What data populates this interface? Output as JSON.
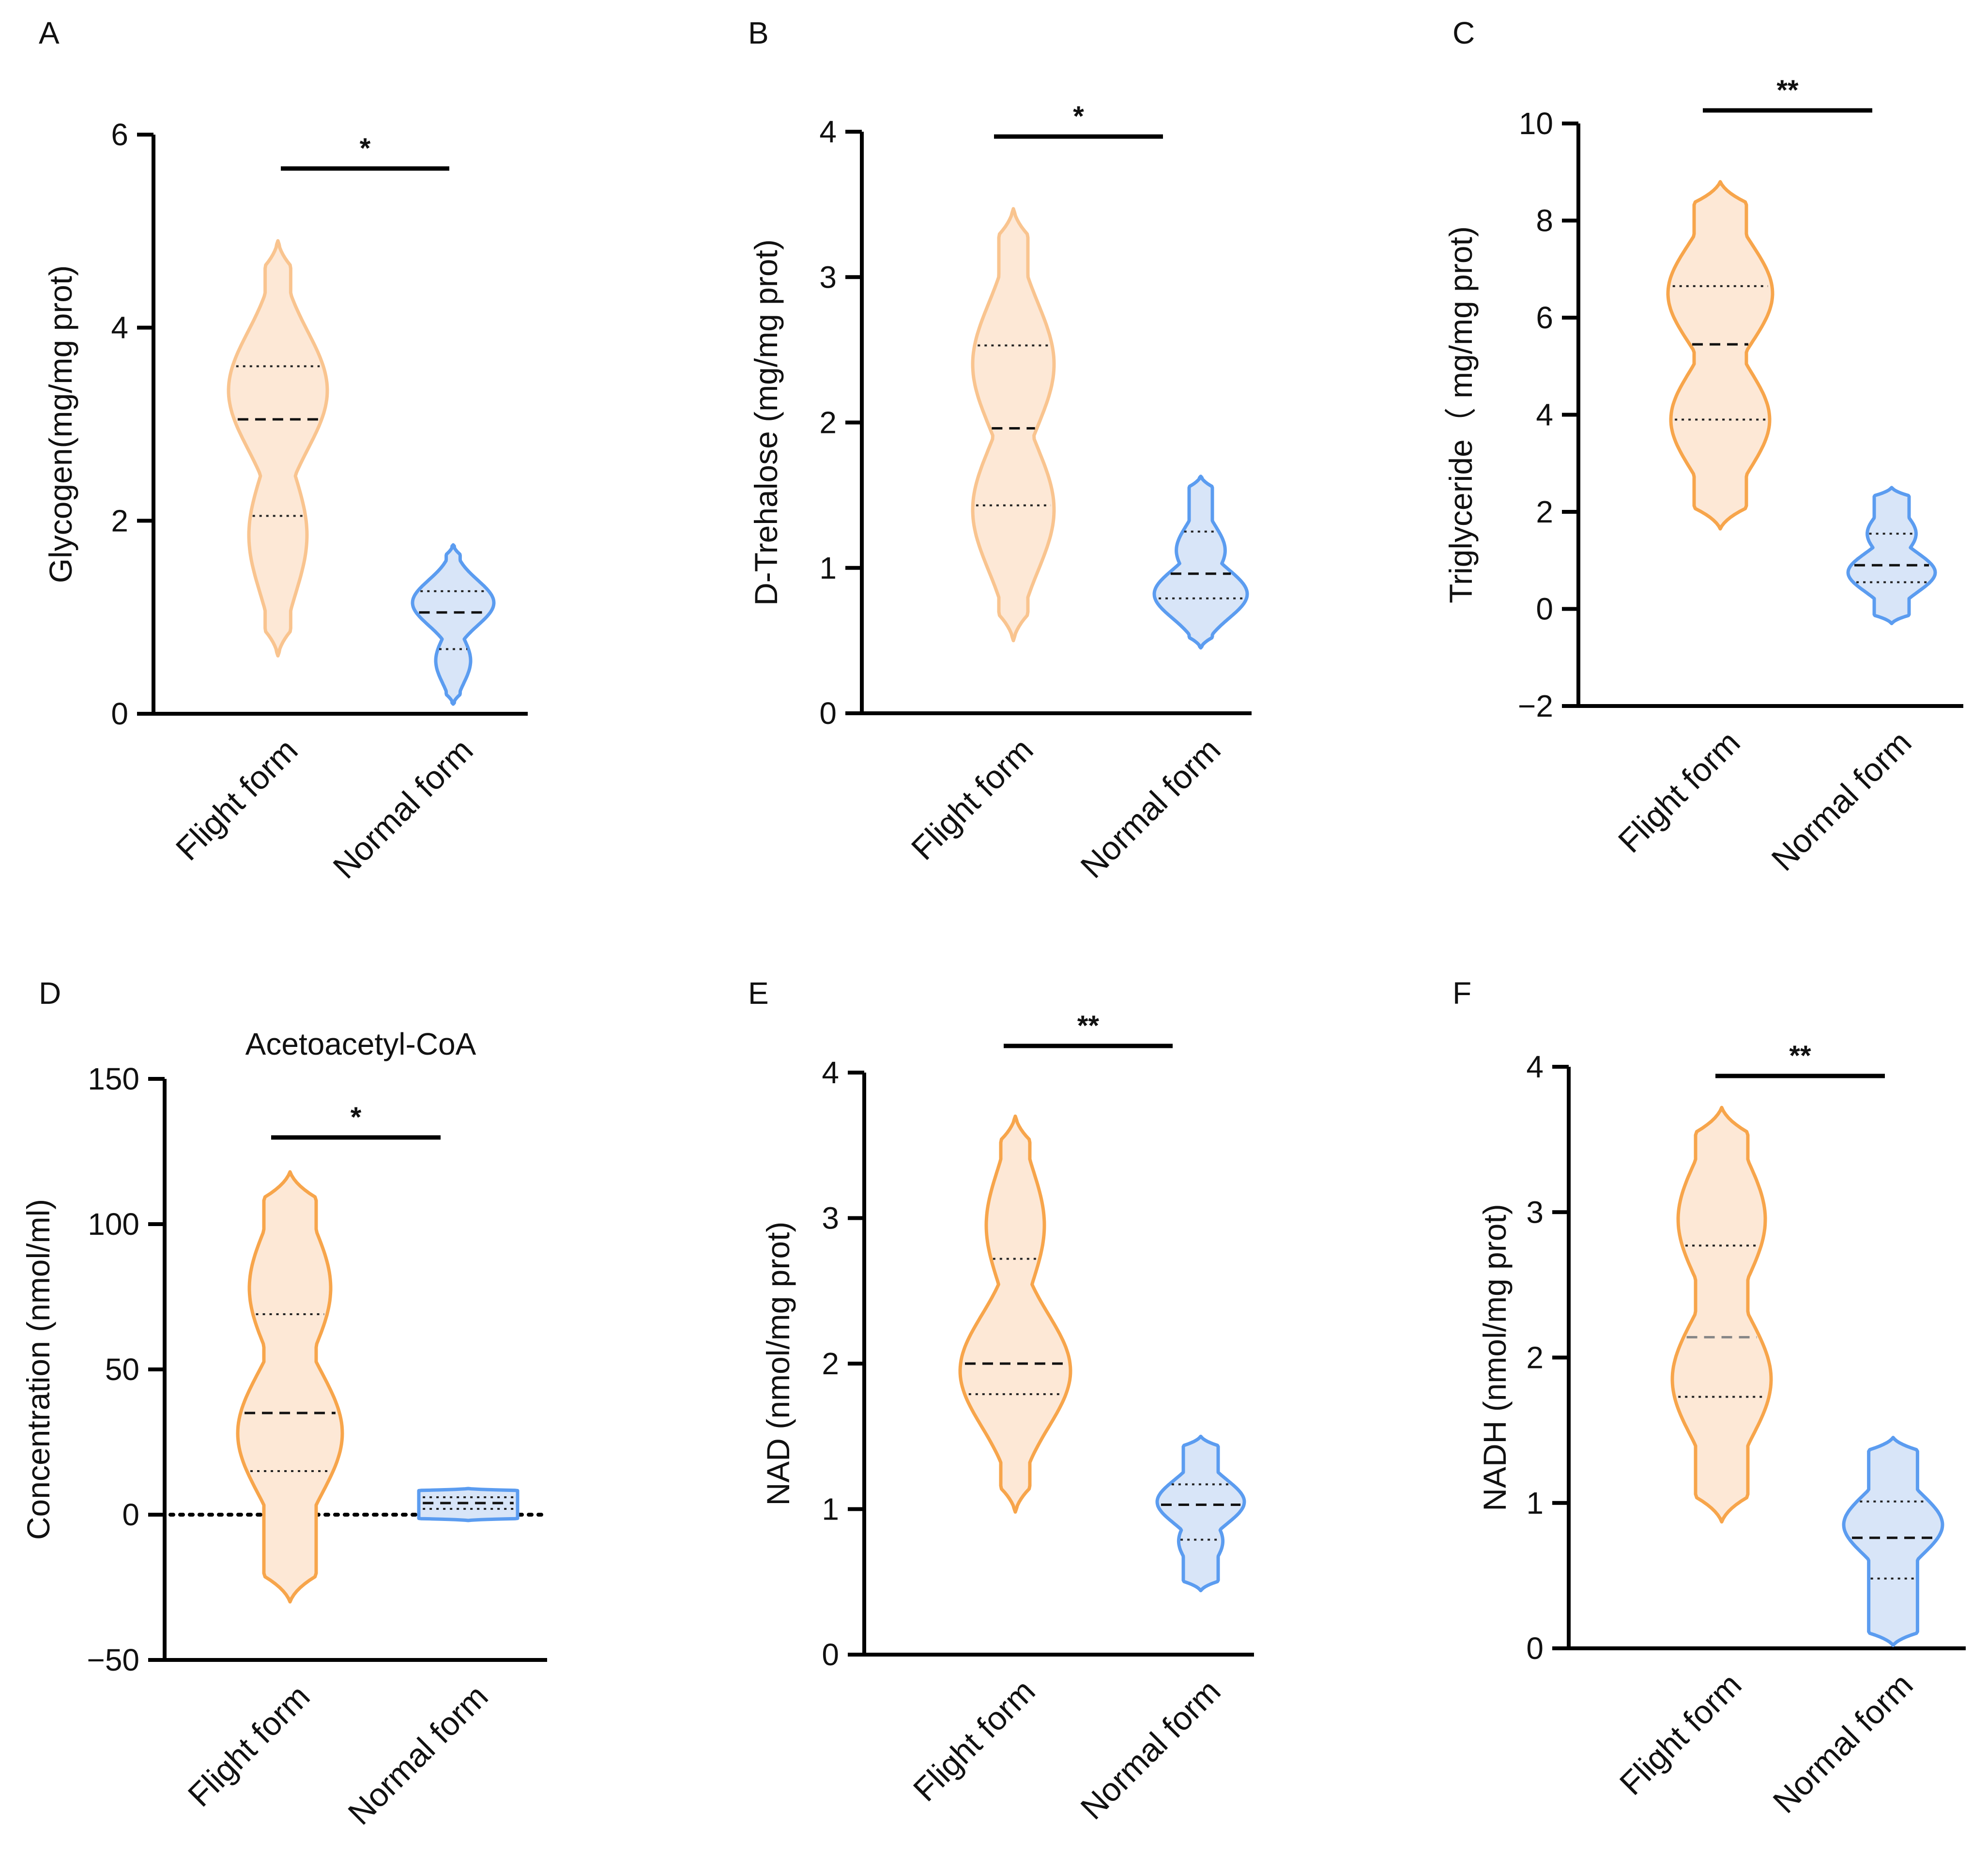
{
  "chart_data": [
    {
      "panel": "A",
      "type": "violin",
      "ylabel": "Glycogen(mg/mg prot)",
      "ylim": [
        0,
        6
      ],
      "yticks": [
        0,
        2,
        4,
        6
      ],
      "categories": [
        "Flight form",
        "Normal form"
      ],
      "significance": "*",
      "series": [
        {
          "name": "Flight form",
          "min": 0.6,
          "max": 4.9,
          "q1": 2.05,
          "median": 3.05,
          "q3": 3.6,
          "modes": [
            {
              "y": 3.35,
              "w": 0.85
            },
            {
              "y": 1.85,
              "w": 0.5
            }
          ],
          "waist": 0.22,
          "color": "#f9c48f",
          "fill": "#fde8d6",
          "median_color": "#111111"
        },
        {
          "name": "Normal form",
          "min": 0.1,
          "max": 1.75,
          "q1": 0.67,
          "median": 1.05,
          "q3": 1.27,
          "modes": [
            {
              "y": 1.15,
              "w": 0.7
            },
            {
              "y": 0.55,
              "w": 0.3
            }
          ],
          "waist": 0.12,
          "color": "#5b9cf0",
          "fill": "#d8e5f8",
          "median_color": "#111111"
        }
      ]
    },
    {
      "panel": "B",
      "type": "violin",
      "ylabel": "D-Trehalose (mg/mg prot)",
      "ylim": [
        0,
        4
      ],
      "yticks": [
        0,
        1,
        2,
        3,
        4
      ],
      "categories": [
        "Flight form",
        "Normal form"
      ],
      "significance": "*",
      "series": [
        {
          "name": "Flight form",
          "min": 0.5,
          "max": 3.47,
          "q1": 1.43,
          "median": 1.96,
          "q3": 2.53,
          "modes": [
            {
              "y": 2.4,
              "w": 0.7
            },
            {
              "y": 1.4,
              "w": 0.7
            }
          ],
          "waist": 0.25,
          "color": "#f9c48f",
          "fill": "#fde8d6",
          "median_color": "#111111"
        },
        {
          "name": "Normal form",
          "min": 0.45,
          "max": 1.63,
          "q1": 0.79,
          "median": 0.96,
          "q3": 1.25,
          "modes": [
            {
              "y": 1.12,
              "w": 0.42
            },
            {
              "y": 0.82,
              "w": 0.8
            }
          ],
          "waist": 0.2,
          "color": "#5b9cf0",
          "fill": "#d8e5f8",
          "median_color": "#111111"
        }
      ]
    },
    {
      "panel": "C",
      "type": "violin",
      "ylabel": "Triglyceride（ mg/mg prot)",
      "ylim": [
        -2,
        10
      ],
      "yticks": [
        -2,
        0,
        2,
        4,
        6,
        8,
        10
      ],
      "categories": [
        "Flight form",
        "Normal form"
      ],
      "significance": "**",
      "series": [
        {
          "name": "Flight form",
          "min": 1.65,
          "max": 8.8,
          "q1": 3.9,
          "median": 5.45,
          "q3": 6.65,
          "modes": [
            {
              "y": 6.5,
              "w": 0.9
            },
            {
              "y": 3.9,
              "w": 0.85
            }
          ],
          "waist": 0.45,
          "color": "#f7a54b",
          "fill": "#fde8d6",
          "median_color": "#111111"
        },
        {
          "name": "Normal form",
          "min": -0.3,
          "max": 2.5,
          "q1": 0.55,
          "median": 0.9,
          "q3": 1.55,
          "modes": [
            {
              "y": 1.55,
              "w": 0.42
            },
            {
              "y": 0.75,
              "w": 0.75
            }
          ],
          "waist": 0.3,
          "color": "#5b9cf0",
          "fill": "#d8e5f8",
          "median_color": "#111111"
        }
      ]
    },
    {
      "panel": "D",
      "type": "violin",
      "title": "Acetoacetyl-CoA",
      "ylabel": "Concentration (nmol/ml)",
      "ylim": [
        -50,
        150
      ],
      "yticks": [
        -50,
        0,
        50,
        100,
        150
      ],
      "reference_line": 0,
      "categories": [
        "Flight form",
        "Normal form"
      ],
      "significance": "*",
      "series": [
        {
          "name": "Flight form",
          "min": -30,
          "max": 118,
          "q1": 15,
          "median": 35,
          "q3": 69,
          "modes": [
            {
              "y": 78,
              "w": 0.7
            },
            {
              "y": 28,
              "w": 0.9
            }
          ],
          "waist": 0.45,
          "color": "#f7a54b",
          "fill": "#fde8d6",
          "median_color": "#111111"
        },
        {
          "name": "Normal form",
          "min": -2,
          "max": 9,
          "q1": 2,
          "median": 4,
          "q3": 6,
          "modes": [
            {
              "y": 4.5,
              "w": 0.85
            }
          ],
          "waist": 0.85,
          "color": "#5b9cf0",
          "fill": "#d8e5f8",
          "median_color": "#111111"
        }
      ]
    },
    {
      "panel": "E",
      "type": "violin",
      "ylabel": "NAD (nmol/mg prot)",
      "ylim": [
        0,
        4
      ],
      "yticks": [
        0,
        1,
        2,
        3,
        4
      ],
      "categories": [
        "Flight form",
        "Normal form"
      ],
      "significance": "**",
      "series": [
        {
          "name": "Flight form",
          "min": 0.98,
          "max": 3.7,
          "q1": 1.79,
          "median": 2.0,
          "q3": 2.72,
          "modes": [
            {
              "y": 2.95,
              "w": 0.5
            },
            {
              "y": 1.95,
              "w": 0.95
            }
          ],
          "waist": 0.25,
          "color": "#f7a54b",
          "fill": "#fde8d6",
          "median_color": "#111111"
        },
        {
          "name": "Normal form",
          "min": 0.44,
          "max": 1.5,
          "q1": 0.79,
          "median": 1.03,
          "q3": 1.17,
          "modes": [
            {
              "y": 1.05,
              "w": 0.75
            },
            {
              "y": 0.78,
              "w": 0.38
            }
          ],
          "waist": 0.3,
          "color": "#5b9cf0",
          "fill": "#d8e5f8",
          "median_color": "#111111"
        }
      ]
    },
    {
      "panel": "F",
      "type": "violin",
      "ylabel": "NADH (nmol/mg prot)",
      "ylim": [
        0,
        4
      ],
      "yticks": [
        0,
        1,
        2,
        3,
        4
      ],
      "categories": [
        "Flight form",
        "Normal form"
      ],
      "significance": "**",
      "series": [
        {
          "name": "Flight form",
          "min": 0.87,
          "max": 3.72,
          "q1": 1.73,
          "median": 2.14,
          "q3": 2.77,
          "modes": [
            {
              "y": 2.95,
              "w": 0.75
            },
            {
              "y": 1.85,
              "w": 0.85
            }
          ],
          "waist": 0.45,
          "color": "#f7a54b",
          "fill": "#fde8d6",
          "median_color": "#888888"
        },
        {
          "name": "Normal form",
          "min": 0.02,
          "max": 1.45,
          "q1": 0.48,
          "median": 0.76,
          "q3": 1.01,
          "modes": [
            {
              "y": 0.85,
              "w": 0.85
            },
            {
              "y": 0.3,
              "w": 0.38
            }
          ],
          "waist": 0.42,
          "color": "#5b9cf0",
          "fill": "#d8e5f8",
          "median_color": "#111111"
        }
      ]
    }
  ]
}
